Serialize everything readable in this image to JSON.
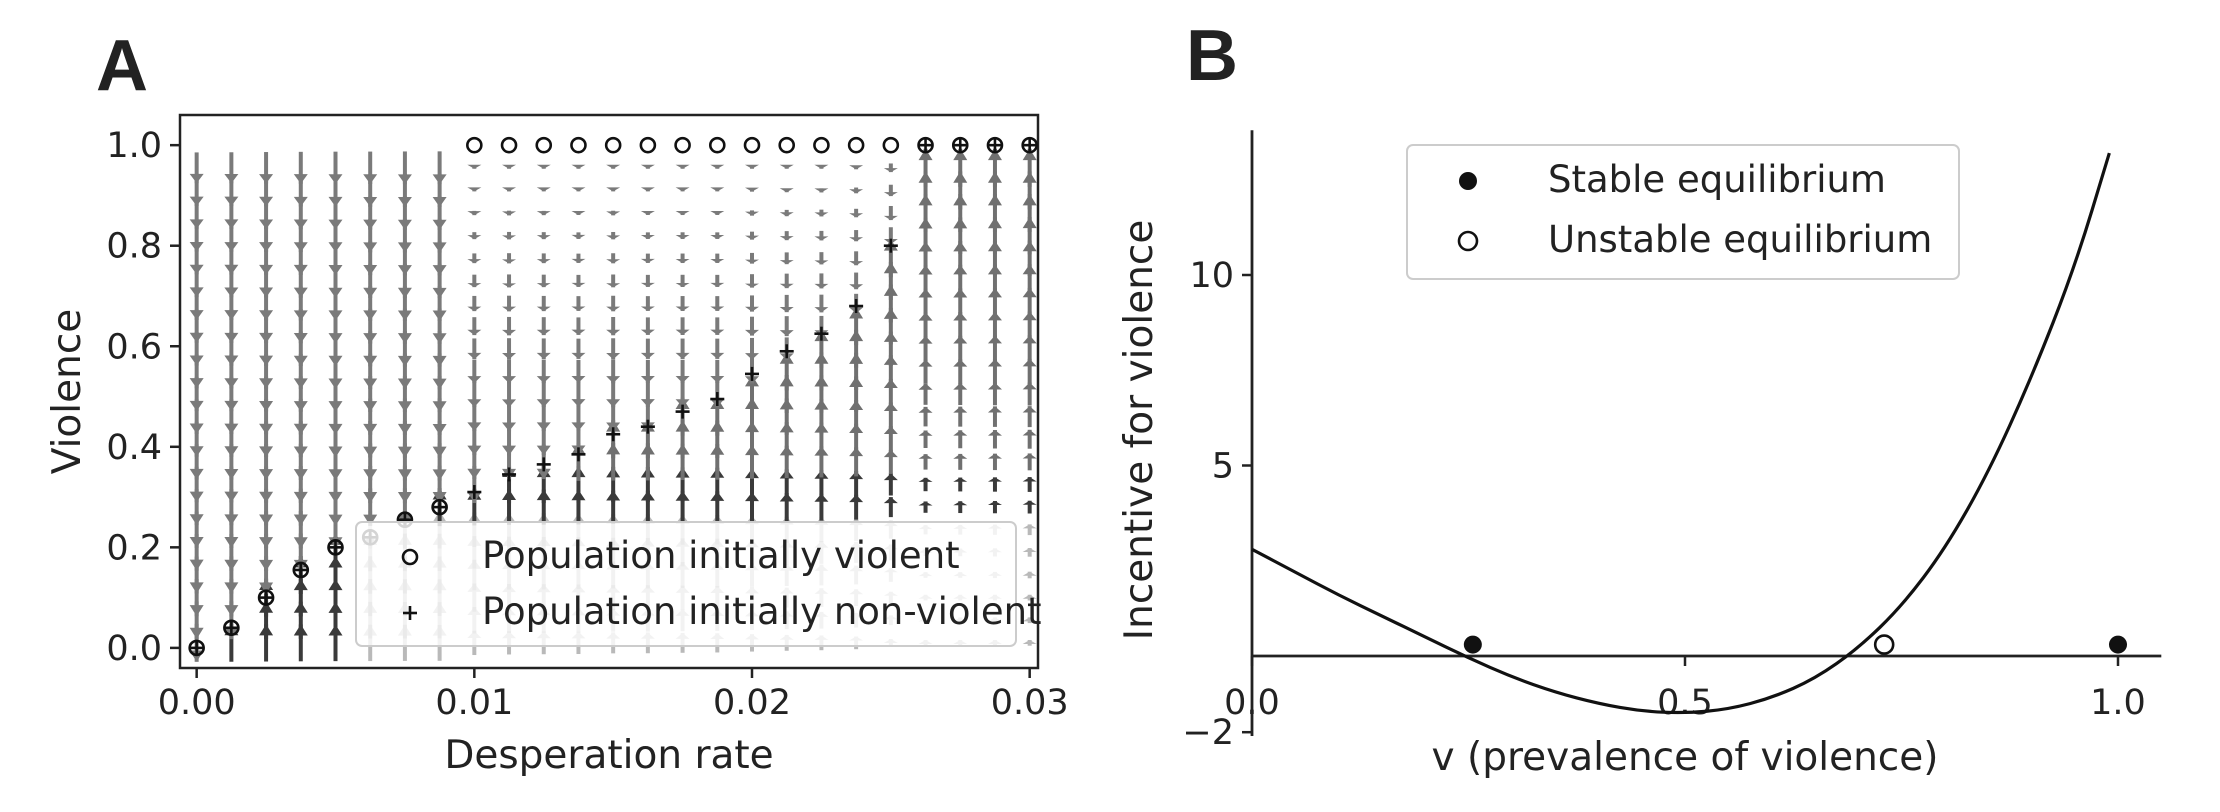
{
  "panels": {
    "a": {
      "letter": "A"
    },
    "b": {
      "letter": "B"
    }
  },
  "chart_data": [
    {
      "type": "scatter",
      "title": "",
      "xlabel": "Desperation rate",
      "ylabel": "Violence",
      "xlim": [
        -0.0006,
        0.0303
      ],
      "ylim": [
        -0.04,
        1.06
      ],
      "xticks": [
        0.0,
        0.01,
        0.02,
        0.03
      ],
      "xtick_labels": [
        "0.00",
        "0.01",
        "0.02",
        "0.03"
      ],
      "yticks": [
        0.0,
        0.2,
        0.4,
        0.6,
        0.8,
        1.0
      ],
      "ytick_labels": [
        "0.0",
        "0.2",
        "0.4",
        "0.6",
        "0.8",
        "1.0"
      ],
      "grid": false,
      "legend_placement": "lower-right",
      "background_field": "vector field (quiver) of dv/dt over desperation rate and violence",
      "series": [
        {
          "name": "Population initially violent",
          "marker": "open-circle",
          "x": [
            0.0,
            0.00125,
            0.0025,
            0.00375,
            0.005,
            0.00625,
            0.0075,
            0.00875,
            0.01,
            0.01125,
            0.0125,
            0.01375,
            0.015,
            0.01625,
            0.0175,
            0.01875,
            0.02,
            0.02125,
            0.0225,
            0.02375,
            0.025,
            0.02625,
            0.0275,
            0.02875,
            0.03
          ],
          "y": [
            0.0,
            0.04,
            0.1,
            0.155,
            0.2,
            0.22,
            0.255,
            0.28,
            1.0,
            1.0,
            1.0,
            1.0,
            1.0,
            1.0,
            1.0,
            1.0,
            1.0,
            1.0,
            1.0,
            1.0,
            1.0,
            1.0,
            1.0,
            1.0,
            1.0
          ]
        },
        {
          "name": "Population initially non-violent",
          "marker": "plus",
          "x": [
            0.0,
            0.00125,
            0.0025,
            0.00375,
            0.005,
            0.00625,
            0.0075,
            0.00875,
            0.01,
            0.01125,
            0.0125,
            0.01375,
            0.015,
            0.01625,
            0.0175,
            0.01875,
            0.02,
            0.02125,
            0.0225,
            0.02375,
            0.025,
            0.02625,
            0.0275,
            0.02875,
            0.03
          ],
          "y": [
            0.0,
            0.04,
            0.1,
            0.155,
            0.2,
            0.22,
            0.255,
            0.28,
            0.31,
            0.345,
            0.365,
            0.385,
            0.425,
            0.44,
            0.47,
            0.495,
            0.545,
            0.59,
            0.625,
            0.68,
            0.8,
            1.0,
            1.0,
            1.0,
            1.0
          ]
        }
      ]
    },
    {
      "type": "line",
      "title": "",
      "xlabel": "v (prevalence of violence)",
      "ylabel": "Incentive for violence",
      "xlim": [
        -0.01,
        1.05
      ],
      "ylim": [
        -2.2,
        14.0
      ],
      "xticks": [
        0.0,
        0.5,
        1.0
      ],
      "xtick_labels": [
        "0.0",
        "0.5",
        "1.0"
      ],
      "yticks": [
        -2,
        5,
        10
      ],
      "ytick_labels": [
        "−2",
        "5",
        "10"
      ],
      "grid": false,
      "legend_placement": "upper-center",
      "spines": "centered at zero (x-axis at y = 0, y-axis at x = 0)",
      "curve": {
        "x": [
          0.0,
          0.05,
          0.1,
          0.15,
          0.2,
          0.25,
          0.3,
          0.35,
          0.4,
          0.45,
          0.5,
          0.55,
          0.6,
          0.65,
          0.7,
          0.75,
          0.8,
          0.85,
          0.9,
          0.95,
          0.99
        ],
        "y": [
          2.8,
          2.2,
          1.6,
          1.05,
          0.5,
          -0.05,
          -0.55,
          -0.95,
          -1.25,
          -1.45,
          -1.5,
          -1.4,
          -1.1,
          -0.6,
          0.2,
          1.3,
          2.8,
          4.8,
          7.3,
          10.2,
          13.2
        ]
      },
      "series": [
        {
          "name": "Stable equilibrium",
          "marker": "filled-circle",
          "x": [
            0.255,
            1.0
          ],
          "y": [
            0.3,
            0.3
          ]
        },
        {
          "name": "Unstable equilibrium",
          "marker": "open-circle",
          "x": [
            0.73
          ],
          "y": [
            0.3
          ]
        }
      ]
    }
  ]
}
